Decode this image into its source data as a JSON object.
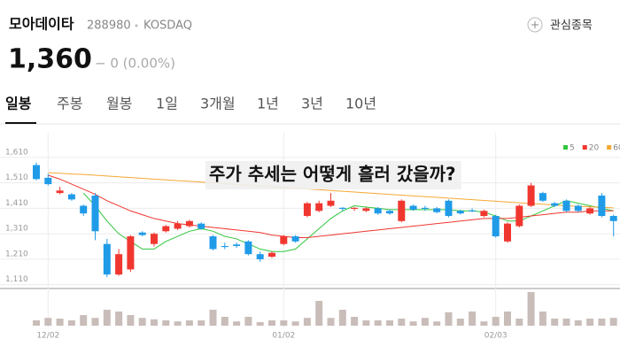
{
  "header": {
    "name": "모아데이타",
    "code": "288980",
    "market": "KOSDAQ",
    "watch_label": "관심종목",
    "price": "1,360",
    "change": "− 0 (0.00%)"
  },
  "tabs": [
    "일봉",
    "주봉",
    "월봉",
    "1일",
    "3개월",
    "1년",
    "3년",
    "10년"
  ],
  "chart_data": {
    "type": "candlestick",
    "title": "주가 추세는 어떻게 흘러 갔을까?",
    "categories": [
      null,
      "12/02",
      null,
      null,
      null,
      null,
      null,
      null,
      null,
      null,
      null,
      null,
      null,
      null,
      null,
      null,
      null,
      null,
      null,
      null,
      null,
      "01/02",
      null,
      null,
      null,
      null,
      null,
      null,
      null,
      null,
      null,
      null,
      null,
      null,
      null,
      null,
      null,
      null,
      null,
      "02/03",
      null,
      null,
      null,
      null,
      null,
      null,
      null,
      null,
      null,
      null
    ],
    "open": [
      1580,
      1530,
      1470,
      1465,
      1420,
      1460,
      1270,
      1150,
      1170,
      1315,
      1270,
      1320,
      1330,
      1340,
      1350,
      1300,
      1262,
      1268,
      1280,
      1230,
      1220,
      1270,
      1300,
      1380,
      1400,
      1420,
      1412,
      1408,
      1400,
      1410,
      1400,
      1360,
      1420,
      1412,
      1410,
      1440,
      1400,
      1402,
      1380,
      1380,
      1280,
      1340,
      1420,
      1470,
      1430,
      1440,
      1420,
      1390,
      1460,
      1380
    ],
    "high": [
      1590,
      1545,
      1495,
      1470,
      1425,
      1470,
      1290,
      1250,
      1305,
      1320,
      1315,
      1345,
      1360,
      1365,
      1355,
      1305,
      1275,
      1275,
      1285,
      1240,
      1240,
      1305,
      1305,
      1435,
      1440,
      1470,
      1415,
      1415,
      1415,
      1415,
      1405,
      1445,
      1425,
      1420,
      1415,
      1445,
      1405,
      1410,
      1405,
      1385,
      1355,
      1425,
      1510,
      1475,
      1435,
      1445,
      1425,
      1415,
      1470,
      1385
    ],
    "low": [
      1520,
      1500,
      1465,
      1440,
      1380,
      1285,
      1140,
      1145,
      1160,
      1300,
      1260,
      1315,
      1325,
      1335,
      1325,
      1245,
      1250,
      1255,
      1225,
      1200,
      1215,
      1265,
      1275,
      1375,
      1395,
      1415,
      1400,
      1400,
      1395,
      1385,
      1385,
      1355,
      1400,
      1400,
      1390,
      1375,
      1385,
      1395,
      1375,
      1295,
      1275,
      1335,
      1415,
      1435,
      1415,
      1395,
      1395,
      1385,
      1375,
      1300
    ],
    "close": [
      1525,
      1505,
      1480,
      1445,
      1390,
      1320,
      1150,
      1230,
      1300,
      1305,
      1310,
      1340,
      1350,
      1360,
      1330,
      1250,
      1258,
      1262,
      1230,
      1210,
      1235,
      1300,
      1280,
      1430,
      1430,
      1440,
      1408,
      1412,
      1410,
      1390,
      1390,
      1440,
      1405,
      1408,
      1395,
      1380,
      1390,
      1398,
      1400,
      1300,
      1350,
      1420,
      1500,
      1440,
      1420,
      1400,
      1400,
      1410,
      1380,
      1360
    ],
    "up_color": "#f0372f",
    "down_color": "#1f9be8",
    "series": [
      {
        "name": "5",
        "color": "#2fc63c",
        "values": [
          null,
          null,
          null,
          null,
          1470,
          1420,
          1360,
          1310,
          1280,
          1250,
          1250,
          1280,
          1300,
          1320,
          1330,
          1320,
          1300,
          1290,
          1270,
          1250,
          1240,
          1240,
          1250,
          1290,
          1330,
          1370,
          1400,
          1420,
          1415,
          1410,
          1405,
          1405,
          1405,
          1405,
          1405,
          1405,
          1400,
          1400,
          1395,
          1380,
          1360,
          1360,
          1380,
          1400,
          1420,
          1440,
          1430,
          1420,
          1410,
          1400
        ]
      },
      {
        "name": "20",
        "color": "#f0372f",
        "values": [
          null,
          1540,
          1525,
          1505,
          1485,
          1465,
          1440,
          1420,
          1400,
          1385,
          1370,
          1360,
          1350,
          1345,
          1340,
          1335,
          1330,
          1325,
          1320,
          1315,
          1305,
          1300,
          1295,
          1295,
          1300,
          1305,
          1310,
          1315,
          1320,
          1325,
          1330,
          1335,
          1340,
          1345,
          1350,
          1355,
          1360,
          1365,
          1370,
          1370,
          1370,
          1375,
          1380,
          1385,
          1390,
          1395,
          1395,
          1400,
          1400,
          1400
        ]
      },
      {
        "name": "60",
        "color": "#f6a833",
        "values": [
          null,
          1550,
          1548,
          1545,
          1543,
          1540,
          1537,
          1534,
          1531,
          1528,
          1525,
          1522,
          1519,
          1516,
          1513,
          1510,
          1507,
          1504,
          1501,
          1498,
          1495,
          1492,
          1489,
          1486,
          1483,
          1480,
          1477,
          1474,
          1471,
          1468,
          1465,
          1462,
          1459,
          1456,
          1453,
          1450,
          1447,
          1444,
          1441,
          1438,
          1435,
          1432,
          1429,
          1426,
          1423,
          1420,
          1418,
          1416,
          1414,
          1412
        ]
      }
    ],
    "volume": {
      "color": "#c9bdb9",
      "ylim": [
        0,
        100
      ],
      "values": [
        15,
        22,
        20,
        15,
        30,
        22,
        45,
        40,
        30,
        22,
        18,
        15,
        12,
        15,
        15,
        45,
        25,
        12,
        25,
        10,
        15,
        15,
        12,
        22,
        70,
        22,
        45,
        25,
        15,
        15,
        15,
        20,
        12,
        22,
        12,
        38,
        20,
        40,
        12,
        25,
        40,
        20,
        95,
        40,
        20,
        20,
        15,
        20,
        20,
        22
      ]
    },
    "ylim": [
      1095,
      1707
    ],
    "yticks": [
      {
        "value": 1610,
        "label": "1,610"
      },
      {
        "value": 1510,
        "label": "1,510"
      },
      {
        "value": 1410,
        "label": "1,410"
      },
      {
        "value": 1310,
        "label": "1,310"
      },
      {
        "value": 1210,
        "label": "1,210"
      },
      {
        "value": 1110,
        "label": "1,110"
      }
    ],
    "grid": true,
    "legend": "top-right"
  }
}
